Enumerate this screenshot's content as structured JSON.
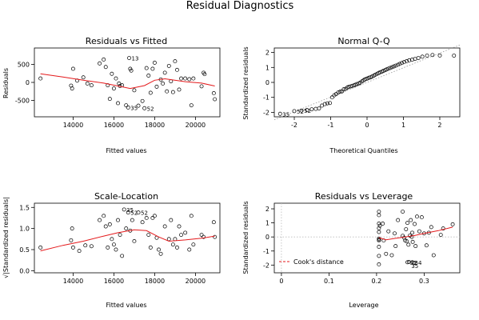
{
  "figure": {
    "title": "Residual Diagnostics"
  },
  "chart_data": [
    {
      "type": "scatter",
      "title": "Residuals vs Fitted",
      "xlabel": "Fitted values",
      "ylabel": "Residuals",
      "xlim": [
        12100,
        21200
      ],
      "ylim": [
        -960,
        960
      ],
      "xticks": [
        14000,
        16000,
        18000,
        20000
      ],
      "yticks": [
        -500,
        0,
        500
      ],
      "points": [
        [
          12400,
          110
        ],
        [
          13900,
          -90
        ],
        [
          13950,
          -170
        ],
        [
          14000,
          380
        ],
        [
          14200,
          50
        ],
        [
          14500,
          140
        ],
        [
          14700,
          -30
        ],
        [
          14900,
          -80
        ],
        [
          15300,
          530
        ],
        [
          15500,
          640
        ],
        [
          15600,
          430
        ],
        [
          15700,
          -80
        ],
        [
          15800,
          -460
        ],
        [
          15900,
          240
        ],
        [
          16000,
          -170
        ],
        [
          16100,
          110
        ],
        [
          16200,
          -580
        ],
        [
          16250,
          -30
        ],
        [
          16300,
          -100
        ],
        [
          16400,
          -80
        ],
        [
          16600,
          -640
        ],
        [
          16700,
          -700
        ],
        [
          16750,
          680
        ],
        [
          16800,
          380
        ],
        [
          16850,
          330
        ],
        [
          17000,
          -220
        ],
        [
          17200,
          -650
        ],
        [
          17400,
          -520
        ],
        [
          17500,
          -720
        ],
        [
          17600,
          400
        ],
        [
          17700,
          190
        ],
        [
          17800,
          -290
        ],
        [
          17900,
          380
        ],
        [
          18000,
          550
        ],
        [
          18100,
          -120
        ],
        [
          18300,
          80
        ],
        [
          18400,
          -30
        ],
        [
          18500,
          270
        ],
        [
          18600,
          -250
        ],
        [
          18700,
          460
        ],
        [
          18800,
          30
        ],
        [
          18900,
          -270
        ],
        [
          19000,
          590
        ],
        [
          19100,
          350
        ],
        [
          19200,
          -200
        ],
        [
          19300,
          110
        ],
        [
          19500,
          110
        ],
        [
          19700,
          90
        ],
        [
          19800,
          -640
        ],
        [
          19900,
          110
        ],
        [
          20300,
          -110
        ],
        [
          20400,
          270
        ],
        [
          20450,
          230
        ],
        [
          20900,
          -300
        ],
        [
          20950,
          -470
        ]
      ],
      "smooth": [
        [
          12400,
          240
        ],
        [
          13500,
          150
        ],
        [
          14500,
          60
        ],
        [
          15500,
          -20
        ],
        [
          16200,
          -100
        ],
        [
          16800,
          -170
        ],
        [
          17500,
          -90
        ],
        [
          18000,
          60
        ],
        [
          18500,
          100
        ],
        [
          19500,
          20
        ],
        [
          20300,
          -20
        ],
        [
          20950,
          -100
        ]
      ],
      "labels": [
        {
          "text": "13",
          "x": 16750,
          "y": 680
        },
        {
          "text": "35",
          "x": 16700,
          "y": -700
        },
        {
          "text": "52",
          "x": 17500,
          "y": -720
        }
      ]
    },
    {
      "type": "scatter",
      "title": "Normal Q-Q",
      "xlabel": "Theoretical Quantiles",
      "ylabel": "Standardized residuals",
      "xlim": [
        -2.55,
        2.55
      ],
      "ylim": [
        -2.3,
        2.3
      ],
      "xticks": [
        -2,
        -1,
        0,
        1,
        2
      ],
      "yticks": [
        -2,
        -1,
        0,
        1,
        2
      ],
      "points": [
        [
          -2.39,
          -2.1
        ],
        [
          -2.0,
          -1.92
        ],
        [
          -1.8,
          -1.88
        ],
        [
          -1.65,
          -1.85
        ],
        [
          -1.52,
          -1.8
        ],
        [
          -1.41,
          -1.77
        ],
        [
          -1.32,
          -1.74
        ],
        [
          -1.24,
          -1.55
        ],
        [
          -1.16,
          -1.45
        ],
        [
          -1.09,
          -1.4
        ],
        [
          -1.02,
          -1.38
        ],
        [
          -0.96,
          -1.0
        ],
        [
          -0.9,
          -0.86
        ],
        [
          -0.85,
          -0.78
        ],
        [
          -0.79,
          -0.67
        ],
        [
          -0.74,
          -0.62
        ],
        [
          -0.69,
          -0.6
        ],
        [
          -0.64,
          -0.46
        ],
        [
          -0.59,
          -0.43
        ],
        [
          -0.54,
          -0.34
        ],
        [
          -0.5,
          -0.29
        ],
        [
          -0.45,
          -0.27
        ],
        [
          -0.41,
          -0.23
        ],
        [
          -0.36,
          -0.2
        ],
        [
          -0.32,
          -0.16
        ],
        [
          -0.28,
          -0.11
        ],
        [
          -0.23,
          -0.07
        ],
        [
          -0.19,
          -0.02
        ],
        [
          -0.14,
          0.07
        ],
        [
          -0.1,
          0.13
        ],
        [
          -0.06,
          0.2
        ],
        [
          -0.02,
          0.23
        ],
        [
          0.02,
          0.27
        ],
        [
          0.06,
          0.32
        ],
        [
          0.1,
          0.34
        ],
        [
          0.14,
          0.4
        ],
        [
          0.19,
          0.46
        ],
        [
          0.23,
          0.52
        ],
        [
          0.28,
          0.58
        ],
        [
          0.32,
          0.63
        ],
        [
          0.36,
          0.68
        ],
        [
          0.41,
          0.72
        ],
        [
          0.45,
          0.77
        ],
        [
          0.5,
          0.82
        ],
        [
          0.54,
          0.87
        ],
        [
          0.59,
          0.92
        ],
        [
          0.64,
          0.97
        ],
        [
          0.69,
          1.02
        ],
        [
          0.74,
          1.07
        ],
        [
          0.79,
          1.12
        ],
        [
          0.85,
          1.18
        ],
        [
          0.9,
          1.24
        ],
        [
          0.96,
          1.3
        ],
        [
          1.02,
          1.36
        ],
        [
          1.09,
          1.42
        ],
        [
          1.16,
          1.48
        ],
        [
          1.24,
          1.52
        ],
        [
          1.32,
          1.57
        ],
        [
          1.41,
          1.63
        ],
        [
          1.52,
          1.72
        ],
        [
          1.65,
          1.79
        ],
        [
          1.8,
          1.83
        ],
        [
          2.0,
          1.8
        ],
        [
          2.39,
          1.79
        ]
      ],
      "reference_line": [
        [
          -2.55,
          -2.5
        ],
        [
          2.55,
          2.5
        ]
      ],
      "labels": [
        {
          "text": "35",
          "x": -2.39,
          "y": -2.1
        },
        {
          "text": "52",
          "x": -2.0,
          "y": -1.92
        },
        {
          "text": "52",
          "x": -1.8,
          "y": -1.88
        }
      ]
    },
    {
      "type": "scatter",
      "title": "Scale-Location",
      "xlabel": "Fitted values",
      "ylabel": "√|Standardized residuals|",
      "xlim": [
        12100,
        21200
      ],
      "ylim": [
        -0.05,
        1.6
      ],
      "xticks": [
        14000,
        16000,
        18000,
        20000
      ],
      "yticks": [
        0.0,
        0.5,
        1.0,
        1.5
      ],
      "points": [
        [
          12400,
          0.55
        ],
        [
          13900,
          0.72
        ],
        [
          13950,
          1.0
        ],
        [
          14000,
          0.55
        ],
        [
          14300,
          0.47
        ],
        [
          14600,
          0.6
        ],
        [
          14900,
          0.58
        ],
        [
          15300,
          1.2
        ],
        [
          15500,
          1.3
        ],
        [
          15600,
          1.05
        ],
        [
          15700,
          0.55
        ],
        [
          15800,
          1.1
        ],
        [
          15900,
          0.75
        ],
        [
          16000,
          0.62
        ],
        [
          16100,
          0.5
        ],
        [
          16200,
          1.2
        ],
        [
          16300,
          0.85
        ],
        [
          16400,
          0.35
        ],
        [
          16500,
          1.45
        ],
        [
          16600,
          1.0
        ],
        [
          16700,
          1.38
        ],
        [
          16800,
          0.95
        ],
        [
          16900,
          1.2
        ],
        [
          17000,
          0.7
        ],
        [
          17200,
          1.38
        ],
        [
          17400,
          1.15
        ],
        [
          17600,
          1.25
        ],
        [
          17700,
          0.85
        ],
        [
          17800,
          0.55
        ],
        [
          17900,
          1.25
        ],
        [
          18000,
          1.3
        ],
        [
          18100,
          0.78
        ],
        [
          18200,
          0.5
        ],
        [
          18300,
          0.4
        ],
        [
          18500,
          1.05
        ],
        [
          18700,
          0.75
        ],
        [
          18800,
          1.2
        ],
        [
          18900,
          0.62
        ],
        [
          19000,
          0.75
        ],
        [
          19100,
          0.55
        ],
        [
          19200,
          1.05
        ],
        [
          19300,
          0.85
        ],
        [
          19500,
          0.9
        ],
        [
          19700,
          0.5
        ],
        [
          19800,
          1.3
        ],
        [
          19900,
          0.62
        ],
        [
          20300,
          0.85
        ],
        [
          20400,
          0.8
        ],
        [
          20900,
          1.15
        ],
        [
          20950,
          0.8
        ]
      ],
      "smooth": [
        [
          12400,
          0.47
        ],
        [
          13500,
          0.6
        ],
        [
          14500,
          0.7
        ],
        [
          15500,
          0.82
        ],
        [
          16200,
          0.9
        ],
        [
          17000,
          0.97
        ],
        [
          17600,
          0.95
        ],
        [
          18200,
          0.8
        ],
        [
          18700,
          0.7
        ],
        [
          19500,
          0.73
        ],
        [
          20300,
          0.77
        ],
        [
          20950,
          0.82
        ]
      ],
      "labels": [
        {
          "text": "35",
          "x": 16500,
          "y": 1.45
        },
        {
          "text": "52",
          "x": 16700,
          "y": 1.38
        },
        {
          "text": "52",
          "x": 17200,
          "y": 1.38
        }
      ]
    },
    {
      "type": "scatter",
      "title": "Residuals vs Leverage",
      "xlabel": "Leverage",
      "ylabel": "Standardized residuals",
      "xlim": [
        -0.015,
        0.375
      ],
      "ylim": [
        -2.55,
        2.4
      ],
      "xticks": [
        0.0,
        0.1,
        0.2,
        0.3
      ],
      "yticks": [
        -2,
        -1,
        0,
        1,
        2
      ],
      "points": [
        [
          0.205,
          1.8
        ],
        [
          0.205,
          1.55
        ],
        [
          0.205,
          0.95
        ],
        [
          0.205,
          0.62
        ],
        [
          0.205,
          0.35
        ],
        [
          0.205,
          -0.12
        ],
        [
          0.205,
          -0.2
        ],
        [
          0.205,
          -0.25
        ],
        [
          0.205,
          -0.7
        ],
        [
          0.205,
          -1.35
        ],
        [
          0.205,
          -1.95
        ],
        [
          0.207,
          0.8
        ],
        [
          0.213,
          0.95
        ],
        [
          0.215,
          -0.25
        ],
        [
          0.22,
          -1.2
        ],
        [
          0.225,
          0.4
        ],
        [
          0.232,
          -1.3
        ],
        [
          0.238,
          0.25
        ],
        [
          0.24,
          -0.65
        ],
        [
          0.245,
          1.2
        ],
        [
          0.255,
          0.08
        ],
        [
          0.255,
          1.8
        ],
        [
          0.258,
          -0.05
        ],
        [
          0.26,
          -0.25
        ],
        [
          0.262,
          0.55
        ],
        [
          0.263,
          -0.3
        ],
        [
          0.265,
          1.0
        ],
        [
          0.265,
          -1.8
        ],
        [
          0.267,
          -0.55
        ],
        [
          0.268,
          -1.78
        ],
        [
          0.27,
          0.1
        ],
        [
          0.272,
          1.2
        ],
        [
          0.274,
          0.0
        ],
        [
          0.275,
          0.3
        ],
        [
          0.275,
          -1.8
        ],
        [
          0.276,
          -0.35
        ],
        [
          0.278,
          -1.85
        ],
        [
          0.28,
          0.92
        ],
        [
          0.282,
          -0.65
        ],
        [
          0.285,
          1.45
        ],
        [
          0.29,
          0.4
        ],
        [
          0.295,
          1.4
        ],
        [
          0.3,
          0.25
        ],
        [
          0.305,
          -0.6
        ],
        [
          0.31,
          0.3
        ],
        [
          0.315,
          0.7
        ],
        [
          0.32,
          -1.3
        ],
        [
          0.335,
          0.15
        ],
        [
          0.34,
          0.6
        ],
        [
          0.36,
          0.9
        ]
      ],
      "smooth": [
        [
          0.205,
          -0.05
        ],
        [
          0.22,
          -0.2
        ],
        [
          0.24,
          -0.1
        ],
        [
          0.26,
          0.0
        ],
        [
          0.28,
          0.1
        ],
        [
          0.3,
          0.25
        ],
        [
          0.33,
          0.45
        ],
        [
          0.36,
          0.7
        ]
      ],
      "labels": [
        {
          "text": "52",
          "x": 0.265,
          "y": -1.8
        },
        {
          "text": "34",
          "x": 0.275,
          "y": -1.8
        },
        {
          "text": "35",
          "x": 0.268,
          "y": -2.05
        }
      ],
      "legend": {
        "text": "Cook's distance",
        "placement": "bottom-left"
      }
    }
  ]
}
